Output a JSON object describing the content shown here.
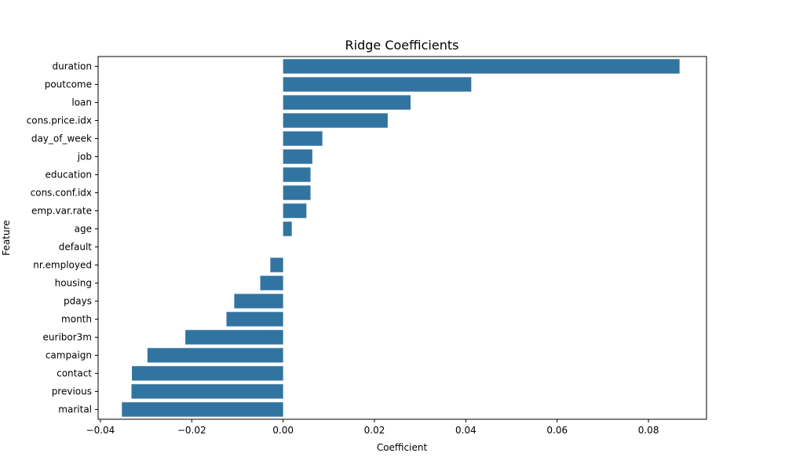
{
  "chart_data": {
    "type": "bar",
    "orientation": "horizontal",
    "title": "Ridge Coefficients",
    "xlabel": "Coefficient",
    "ylabel": "Feature",
    "categories": [
      "duration",
      "poutcome",
      "loan",
      "cons.price.idx",
      "day_of_week",
      "job",
      "education",
      "cons.conf.idx",
      "emp.var.rate",
      "age",
      "default",
      "nr.employed",
      "housing",
      "pdays",
      "month",
      "euribor3m",
      "campaign",
      "contact",
      "previous",
      "marital"
    ],
    "values": [
      0.0868,
      0.0412,
      0.0279,
      0.0229,
      0.0086,
      0.0064,
      0.006,
      0.006,
      0.0051,
      0.0019,
      0.0,
      -0.0028,
      -0.005,
      -0.0107,
      -0.0124,
      -0.0214,
      -0.0297,
      -0.0331,
      -0.0332,
      -0.0353
    ],
    "xlim": [
      -0.0405,
      0.0927
    ],
    "xticks": [
      "−0.04",
      "−0.02",
      "0.00",
      "0.02",
      "0.04",
      "0.06",
      "0.08"
    ],
    "bar_color": "#3274a1",
    "grid": false,
    "legend": "none"
  }
}
